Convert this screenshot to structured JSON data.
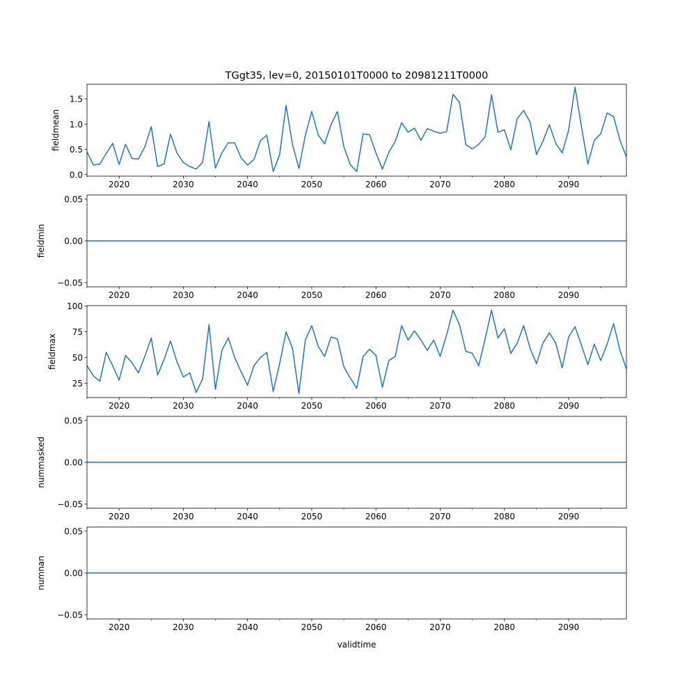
{
  "chart_data": [
    {
      "type": "line",
      "title": "TGgt35, lev=0, 20150101T0000 to 20981211T0000",
      "ylabel": "fieldmean",
      "xlabel": "",
      "xlim": [
        2015,
        2099
      ],
      "ylim": [
        -0.03,
        1.79
      ],
      "yticks": [
        0.0,
        0.5,
        1.0,
        1.5
      ],
      "ytick_labels": [
        "0.0",
        "0.5",
        "1.0",
        "1.5"
      ],
      "xticks": [
        2020,
        2030,
        2040,
        2050,
        2060,
        2070,
        2080,
        2090
      ],
      "xtick_labels": [
        "2020",
        "2030",
        "2040",
        "2050",
        "2060",
        "2070",
        "2080",
        "2090"
      ],
      "x_start": 2015,
      "color": "#1f77b4",
      "values": [
        0.45,
        0.19,
        0.21,
        0.42,
        0.62,
        0.2,
        0.6,
        0.32,
        0.31,
        0.55,
        0.95,
        0.16,
        0.21,
        0.8,
        0.43,
        0.24,
        0.16,
        0.11,
        0.24,
        1.05,
        0.13,
        0.43,
        0.63,
        0.63,
        0.33,
        0.19,
        0.3,
        0.67,
        0.78,
        0.06,
        0.4,
        1.37,
        0.6,
        0.12,
        0.78,
        1.25,
        0.79,
        0.61,
        0.99,
        1.25,
        0.55,
        0.2,
        0.06,
        0.81,
        0.79,
        0.43,
        0.11,
        0.44,
        0.66,
        1.03,
        0.84,
        0.92,
        0.68,
        0.91,
        0.86,
        0.82,
        0.85,
        1.59,
        1.43,
        0.59,
        0.51,
        0.6,
        0.75,
        1.58,
        0.84,
        0.89,
        0.49,
        1.11,
        1.27,
        1.04,
        0.4,
        0.66,
        0.99,
        0.62,
        0.43,
        0.88,
        1.73,
        0.95,
        0.21,
        0.68,
        0.81,
        1.22,
        1.15,
        0.68,
        0.35
      ]
    },
    {
      "type": "line",
      "ylabel": "fieldmin",
      "xlabel": "",
      "xlim": [
        2015,
        2099
      ],
      "ylim": [
        -0.055,
        0.055
      ],
      "yticks": [
        -0.05,
        0.0,
        0.05
      ],
      "ytick_labels": [
        "−0.05",
        "0.00",
        "0.05"
      ],
      "xticks": [
        2020,
        2030,
        2040,
        2050,
        2060,
        2070,
        2080,
        2090
      ],
      "xtick_labels": [
        "2020",
        "2030",
        "2040",
        "2050",
        "2060",
        "2070",
        "2080",
        "2090"
      ],
      "x_start": 2015,
      "color": "#1f77b4",
      "constant_value": 0
    },
    {
      "type": "line",
      "ylabel": "fieldmax",
      "xlabel": "",
      "xlim": [
        2015,
        2099
      ],
      "ylim": [
        11,
        100.5
      ],
      "yticks": [
        25,
        50,
        75,
        100
      ],
      "ytick_labels": [
        "25",
        "50",
        "75",
        "100"
      ],
      "xticks": [
        2020,
        2030,
        2040,
        2050,
        2060,
        2070,
        2080,
        2090
      ],
      "xtick_labels": [
        "2020",
        "2030",
        "2040",
        "2050",
        "2060",
        "2070",
        "2080",
        "2090"
      ],
      "x_start": 2015,
      "color": "#1f77b4",
      "values": [
        42,
        32,
        27,
        55,
        42,
        28,
        52,
        45,
        35,
        51,
        69,
        33,
        48,
        66,
        46,
        31,
        35,
        16,
        29,
        82,
        19,
        57,
        69,
        50,
        36,
        23,
        42,
        50,
        55,
        17,
        44,
        75,
        59,
        15,
        67,
        81,
        61,
        51,
        70,
        68,
        41,
        30,
        20,
        51,
        58,
        52,
        21,
        47,
        51,
        81,
        67,
        76,
        67,
        57,
        67,
        51,
        72,
        96,
        82,
        56,
        54,
        42,
        68,
        96,
        69,
        78,
        54,
        64,
        81,
        59,
        44,
        64,
        74,
        64,
        40,
        70,
        80,
        62,
        43,
        63,
        47,
        63,
        83,
        57,
        39
      ]
    },
    {
      "type": "line",
      "ylabel": "nummasked",
      "xlabel": "",
      "xlim": [
        2015,
        2099
      ],
      "ylim": [
        -0.055,
        0.055
      ],
      "yticks": [
        -0.05,
        0.0,
        0.05
      ],
      "ytick_labels": [
        "−0.05",
        "0.00",
        "0.05"
      ],
      "xticks": [
        2020,
        2030,
        2040,
        2050,
        2060,
        2070,
        2080,
        2090
      ],
      "xtick_labels": [
        "2020",
        "2030",
        "2040",
        "2050",
        "2060",
        "2070",
        "2080",
        "2090"
      ],
      "x_start": 2015,
      "color": "#1f77b4",
      "constant_value": 0
    },
    {
      "type": "line",
      "ylabel": "numnan",
      "xlabel": "validtime",
      "xlim": [
        2015,
        2099
      ],
      "ylim": [
        -0.055,
        0.055
      ],
      "yticks": [
        -0.05,
        0.0,
        0.05
      ],
      "ytick_labels": [
        "−0.05",
        "0.00",
        "0.05"
      ],
      "xticks": [
        2020,
        2030,
        2040,
        2050,
        2060,
        2070,
        2080,
        2090
      ],
      "xtick_labels": [
        "2020",
        "2030",
        "2040",
        "2050",
        "2060",
        "2070",
        "2080",
        "2090"
      ],
      "x_start": 2015,
      "color": "#1f77b4",
      "constant_value": 0
    }
  ]
}
